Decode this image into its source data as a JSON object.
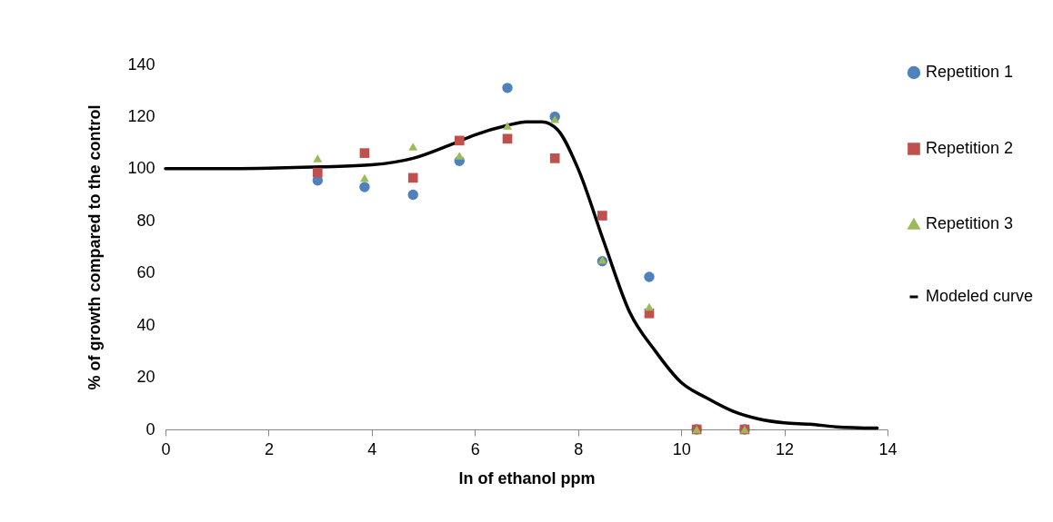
{
  "chart_data": {
    "type": "scatter",
    "xlabel": "ln of ethanol ppm",
    "ylabel": "% of growth compared to the  control",
    "xlim": [
      0,
      14
    ],
    "xticks": [
      0,
      2,
      4,
      6,
      8,
      10,
      12,
      14
    ],
    "ylim": [
      0,
      140
    ],
    "yticks": [
      0,
      20,
      40,
      60,
      80,
      100,
      120,
      140
    ],
    "legend": "right",
    "grid": false,
    "series": [
      {
        "name": "Repetition 1",
        "marker": "circle",
        "color": "#4f81bd",
        "x": [
          2.95,
          3.86,
          4.8,
          5.7,
          6.63,
          7.55,
          8.47,
          9.38,
          10.3,
          11.23
        ],
        "values": [
          95.5,
          93,
          90,
          103,
          131,
          120,
          64.5,
          58.5,
          0,
          0
        ]
      },
      {
        "name": "Repetition 2",
        "marker": "square",
        "color": "#c0504d",
        "x": [
          2.95,
          3.86,
          4.8,
          5.7,
          6.63,
          7.55,
          8.47,
          9.38,
          10.3,
          11.23
        ],
        "values": [
          98.5,
          106,
          96.5,
          110.8,
          111.5,
          104,
          82,
          44.5,
          0,
          0
        ]
      },
      {
        "name": "Repetition 3",
        "marker": "triangle",
        "color": "#9bbb59",
        "x": [
          2.95,
          3.86,
          4.8,
          5.7,
          6.63,
          7.55,
          8.47,
          9.38,
          10.3,
          11.23
        ],
        "values": [
          104,
          96.5,
          108.5,
          105,
          116.5,
          119,
          65,
          47,
          0,
          0
        ]
      },
      {
        "name": "Modeled curve",
        "type": "line",
        "color": "#000000",
        "x": [
          0,
          1,
          2,
          3,
          4,
          4.8,
          5.5,
          6,
          6.6,
          7,
          7.3,
          7.6,
          8,
          8.5,
          9,
          9.5,
          10,
          10.5,
          11,
          11.5,
          12,
          12.5,
          13,
          13.8
        ],
        "values": [
          100,
          100,
          100.2,
          100.7,
          101.5,
          104,
          109,
          113,
          116.5,
          118,
          118,
          115,
          100,
          72,
          45,
          30,
          18,
          12,
          7,
          4,
          2.5,
          2,
          1,
          0.5
        ]
      }
    ]
  }
}
